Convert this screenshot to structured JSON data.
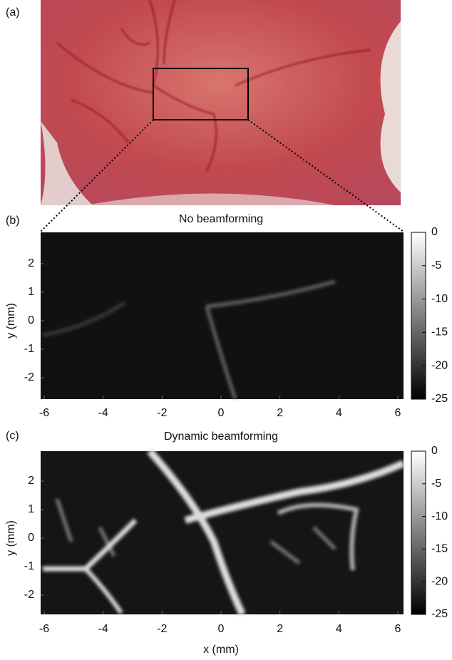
{
  "panels": [
    {
      "label": "(a)"
    },
    {
      "label": "(b)",
      "title": "No beamforming",
      "ylabel": "y (mm)",
      "xticks": [
        -6,
        -4,
        -2,
        0,
        2,
        4,
        6
      ],
      "yticks": [
        2,
        1,
        0,
        -1,
        -2
      ],
      "colorbar_ticks": [
        0,
        -5,
        -10,
        -15,
        -20,
        -25
      ]
    },
    {
      "label": "(c)",
      "title": "Dynamic beamforming",
      "ylabel": "y (mm)",
      "xlabel": "x (mm)",
      "xticks": [
        -6,
        -4,
        -2,
        0,
        2,
        4,
        6
      ],
      "yticks": [
        2,
        1,
        0,
        -1,
        -2
      ],
      "colorbar_ticks": [
        0,
        -5,
        -10,
        -15,
        -20,
        -25
      ]
    }
  ]
}
